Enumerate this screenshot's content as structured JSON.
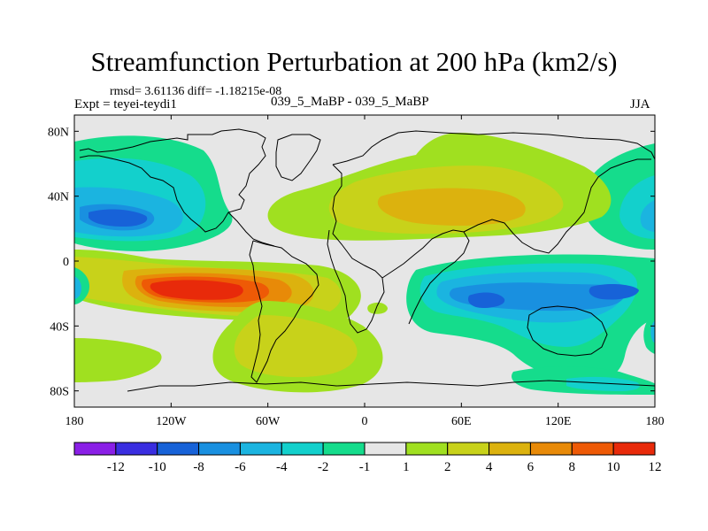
{
  "title": "Streamfunction Perturbation at 200 hPa (km2/s)",
  "stats": "rmsd= 3.61136 diff= -1.18215e-08",
  "experiment": "Expt = teyei-teydi1",
  "case": "039_5_MaBP - 039_5_MaBP",
  "season": "JJA",
  "axes": {
    "lat_ticks": [
      {
        "value": 80,
        "label": "80N"
      },
      {
        "value": 40,
        "label": "40N"
      },
      {
        "value": 0,
        "label": "0"
      },
      {
        "value": -40,
        "label": "40S"
      },
      {
        "value": -80,
        "label": "80S"
      }
    ],
    "lon_ticks": [
      {
        "value": -180,
        "label": "180"
      },
      {
        "value": -120,
        "label": "120W"
      },
      {
        "value": -60,
        "label": "60W"
      },
      {
        "value": 0,
        "label": "0"
      },
      {
        "value": 60,
        "label": "60E"
      },
      {
        "value": 120,
        "label": "120E"
      },
      {
        "value": 180,
        "label": "180"
      }
    ],
    "lon_range": [
      -180,
      180
    ],
    "lat_range": [
      -90,
      90
    ]
  },
  "colorbar": {
    "labels": [
      "-12",
      "-10",
      "-8",
      "-6",
      "-4",
      "-2",
      "-1",
      "1",
      "2",
      "4",
      "6",
      "8",
      "10",
      "12"
    ],
    "colors": [
      "#8a1fe6",
      "#3a2ee0",
      "#1762d8",
      "#1990e0",
      "#1bb4e0",
      "#13d0cc",
      "#15dc8c",
      "#e6e6e6",
      "#a0e020",
      "#c8d21a",
      "#dcb20e",
      "#e88a08",
      "#ee5a06",
      "#e82a0a"
    ]
  },
  "field_colors": {
    "neutral": "#e6e6e6",
    "pos1": "#a0e020",
    "pos2": "#c8d21a",
    "pos3": "#dcb20e",
    "pos4": "#e88a08",
    "pos5": "#ee5a06",
    "pos6": "#e82a0a",
    "neg1": "#15dc8c",
    "neg2": "#13d0cc",
    "neg3": "#1bb4e0",
    "neg4": "#1990e0",
    "neg5": "#1762d8"
  }
}
